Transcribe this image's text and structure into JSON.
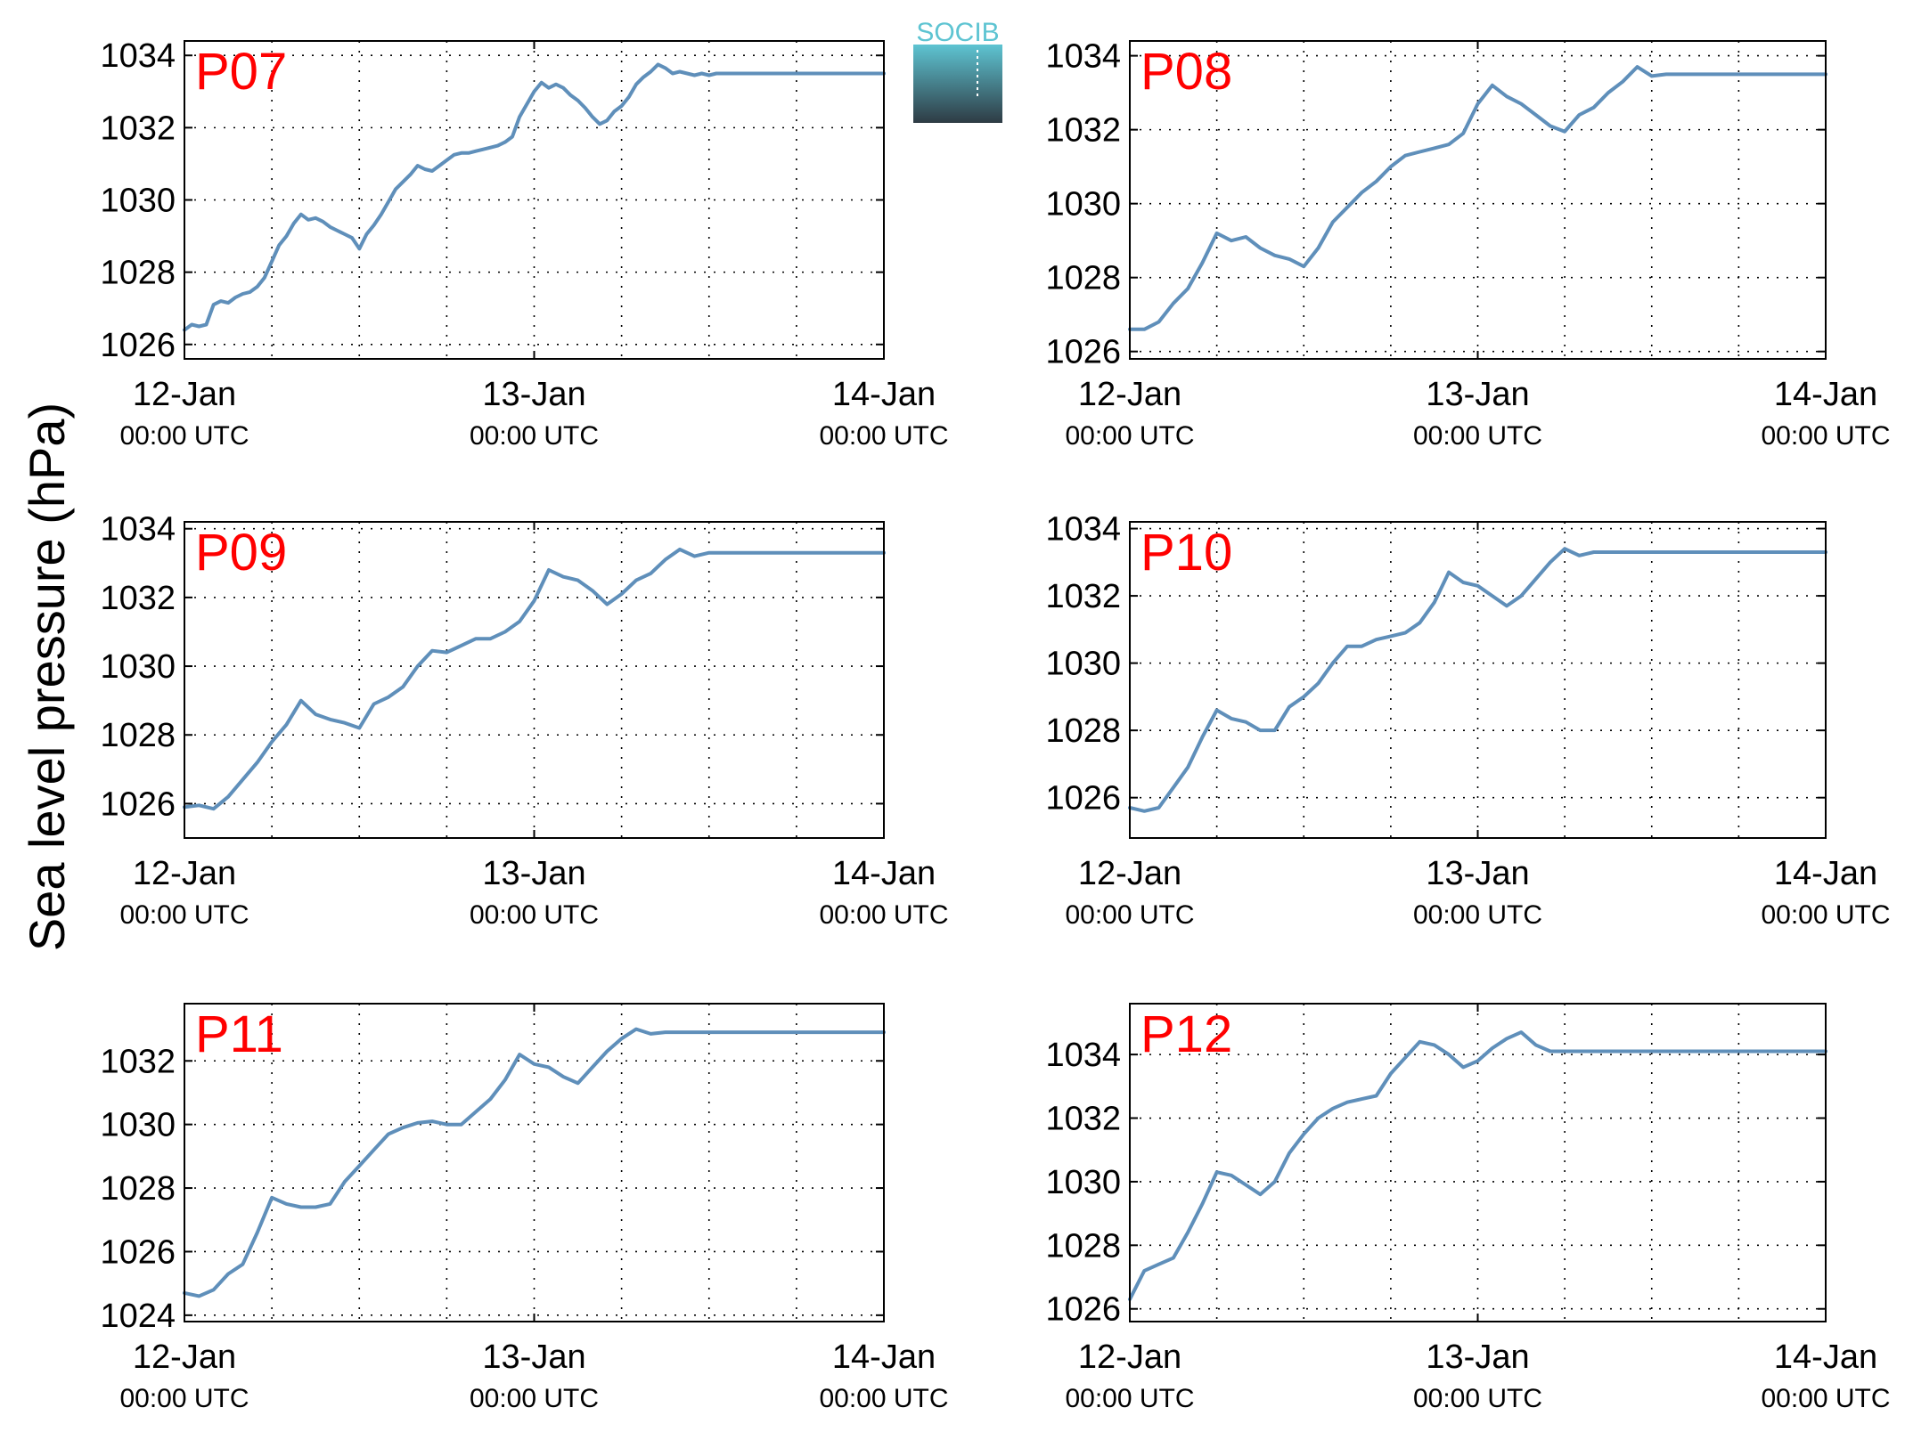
{
  "figure": {
    "ylabel": "Sea level pressure (hPa)",
    "logo_text": "SOCIB",
    "colors": {
      "line": "#5f8fba",
      "label": "#ff0000",
      "grid": "#000000",
      "logo_top": "#5ec4d2",
      "logo_bottom": "#2e3b44"
    }
  },
  "chart_data": [
    {
      "type": "line",
      "title": "P07",
      "x_ticks": [
        {
          "top": "12-Jan",
          "bottom": "00:00 UTC"
        },
        {
          "top": "13-Jan",
          "bottom": "00:00 UTC"
        },
        {
          "top": "14-Jan",
          "bottom": "00:00 UTC"
        }
      ],
      "xlim_hours": [
        0,
        48
      ],
      "ylim": [
        1025.6,
        1034.4
      ],
      "y_ticks": [
        1026,
        1028,
        1030,
        1032,
        1034
      ],
      "grid": true,
      "series": [
        {
          "hours": [
            0,
            0.5,
            1,
            1.5,
            2,
            2.5,
            3,
            3.5,
            4,
            4.5,
            5,
            5.5,
            6,
            6.5,
            7,
            7.5,
            8,
            8.5,
            9,
            9.5,
            10,
            10.5,
            11,
            11.5,
            12,
            12.5,
            13,
            13.5,
            14,
            14.5,
            15,
            15.5,
            16,
            16.5,
            17,
            17.5,
            18,
            18.5,
            19,
            19.5,
            20,
            20.5,
            21,
            21.5,
            22,
            22.5,
            23,
            23.5,
            24,
            24.5,
            25,
            25.5,
            26,
            26.5,
            27,
            27.5,
            28,
            28.5,
            29,
            29.5,
            30,
            30.5,
            31,
            31.5,
            32,
            32.5,
            33,
            33.5,
            34,
            34.5,
            35,
            35.5,
            36,
            36.5,
            37,
            37.5,
            38,
            38.5,
            39,
            39.5,
            40,
            40.5,
            41,
            41.5,
            42,
            42.5,
            43,
            43.5,
            44,
            44.5,
            45,
            45.5,
            46,
            46.5,
            47,
            47.5,
            48
          ],
          "values": [
            1026.4,
            1026.55,
            1026.5,
            1026.55,
            1027.1,
            1027.2,
            1027.15,
            1027.3,
            1027.4,
            1027.45,
            1027.6,
            1027.85,
            1028.3,
            1028.75,
            1029.0,
            1029.35,
            1029.6,
            1029.45,
            1029.5,
            1029.4,
            1029.25,
            1029.15,
            1029.05,
            1028.95,
            1028.65,
            1029.05,
            1029.3,
            1029.6,
            1029.95,
            1030.3,
            1030.5,
            1030.7,
            1030.95,
            1030.85,
            1030.8,
            1030.95,
            1031.1,
            1031.25,
            1031.3,
            1031.3,
            1031.35,
            1031.4,
            1031.45,
            1031.5,
            1031.6,
            1031.75,
            1032.3,
            1032.65,
            1033.0,
            1033.25,
            1033.1,
            1033.2,
            1033.1,
            1032.9,
            1032.75,
            1032.55,
            1032.3,
            1032.1,
            1032.2,
            1032.45,
            1032.6,
            1032.85,
            1033.2,
            1033.4,
            1033.55,
            1033.75,
            1033.65,
            1033.5,
            1033.55,
            1033.5,
            1033.45,
            1033.5,
            1033.45,
            1033.5,
            1033.5,
            1033.5,
            1033.5,
            1033.5,
            1033.5,
            1033.5,
            1033.5,
            1033.5,
            1033.5,
            1033.5,
            1033.5,
            1033.5,
            1033.5,
            1033.5,
            1033.5,
            1033.5,
            1033.5,
            1033.5,
            1033.5,
            1033.5,
            1033.5,
            1033.5,
            1033.5
          ]
        }
      ]
    },
    {
      "type": "line",
      "title": "P08",
      "x_ticks": [
        {
          "top": "12-Jan",
          "bottom": "00:00 UTC"
        },
        {
          "top": "13-Jan",
          "bottom": "00:00 UTC"
        },
        {
          "top": "14-Jan",
          "bottom": "00:00 UTC"
        }
      ],
      "xlim_hours": [
        0,
        48
      ],
      "ylim": [
        1025.8,
        1034.4
      ],
      "y_ticks": [
        1026,
        1028,
        1030,
        1032,
        1034
      ],
      "grid": true,
      "series": [
        {
          "hours": [
            0,
            1,
            2,
            3,
            4,
            5,
            6,
            7,
            8,
            9,
            10,
            11,
            12,
            13,
            14,
            15,
            16,
            17,
            18,
            19,
            20,
            21,
            22,
            23,
            24,
            25,
            26,
            27,
            28,
            29,
            30,
            31,
            32,
            33,
            34,
            35,
            36,
            37,
            38,
            39,
            40,
            41,
            42,
            43,
            44,
            45,
            46,
            47,
            48
          ],
          "values": [
            1026.6,
            1026.6,
            1026.8,
            1027.3,
            1027.7,
            1028.4,
            1029.2,
            1029.0,
            1029.1,
            1028.8,
            1028.6,
            1028.5,
            1028.3,
            1028.8,
            1029.5,
            1029.9,
            1030.3,
            1030.6,
            1031.0,
            1031.3,
            1031.4,
            1031.5,
            1031.6,
            1031.9,
            1032.7,
            1033.2,
            1032.9,
            1032.7,
            1032.4,
            1032.1,
            1031.95,
            1032.4,
            1032.6,
            1033.0,
            1033.3,
            1033.7,
            1033.45,
            1033.5,
            1033.5,
            1033.5,
            1033.5,
            1033.5,
            1033.5,
            1033.5,
            1033.5,
            1033.5,
            1033.5,
            1033.5,
            1033.5
          ]
        }
      ]
    },
    {
      "type": "line",
      "title": "P09",
      "x_ticks": [
        {
          "top": "12-Jan",
          "bottom": "00:00 UTC"
        },
        {
          "top": "13-Jan",
          "bottom": "00:00 UTC"
        },
        {
          "top": "14-Jan",
          "bottom": "00:00 UTC"
        }
      ],
      "xlim_hours": [
        0,
        48
      ],
      "ylim": [
        1025.0,
        1034.2
      ],
      "y_ticks": [
        1026,
        1028,
        1030,
        1032,
        1034
      ],
      "grid": true,
      "series": [
        {
          "hours": [
            0,
            1,
            2,
            3,
            4,
            5,
            6,
            7,
            8,
            9,
            10,
            11,
            12,
            13,
            14,
            15,
            16,
            17,
            18,
            19,
            20,
            21,
            22,
            23,
            24,
            25,
            26,
            27,
            28,
            29,
            30,
            31,
            32,
            33,
            34,
            35,
            36,
            37,
            38,
            39,
            40,
            41,
            42,
            43,
            44,
            45,
            46,
            47,
            48
          ],
          "values": [
            1025.9,
            1025.95,
            1025.85,
            1026.2,
            1026.7,
            1027.2,
            1027.8,
            1028.3,
            1029.0,
            1028.6,
            1028.45,
            1028.35,
            1028.2,
            1028.9,
            1029.1,
            1029.4,
            1030.0,
            1030.45,
            1030.4,
            1030.6,
            1030.8,
            1030.8,
            1031.0,
            1031.3,
            1031.9,
            1032.8,
            1032.6,
            1032.5,
            1032.2,
            1031.8,
            1032.1,
            1032.5,
            1032.7,
            1033.1,
            1033.4,
            1033.2,
            1033.3,
            1033.3,
            1033.3,
            1033.3,
            1033.3,
            1033.3,
            1033.3,
            1033.3,
            1033.3,
            1033.3,
            1033.3,
            1033.3,
            1033.3
          ]
        }
      ]
    },
    {
      "type": "line",
      "title": "P10",
      "x_ticks": [
        {
          "top": "12-Jan",
          "bottom": "00:00 UTC"
        },
        {
          "top": "13-Jan",
          "bottom": "00:00 UTC"
        },
        {
          "top": "14-Jan",
          "bottom": "00:00 UTC"
        }
      ],
      "xlim_hours": [
        0,
        48
      ],
      "ylim": [
        1024.8,
        1034.2
      ],
      "y_ticks": [
        1026,
        1028,
        1030,
        1032,
        1034
      ],
      "grid": true,
      "series": [
        {
          "hours": [
            0,
            1,
            2,
            3,
            4,
            5,
            6,
            7,
            8,
            9,
            10,
            11,
            12,
            13,
            14,
            15,
            16,
            17,
            18,
            19,
            20,
            21,
            22,
            23,
            24,
            25,
            26,
            27,
            28,
            29,
            30,
            31,
            32,
            33,
            34,
            35,
            36,
            37,
            38,
            39,
            40,
            41,
            42,
            43,
            44,
            45,
            46,
            47,
            48
          ],
          "values": [
            1025.7,
            1025.6,
            1025.7,
            1026.3,
            1026.9,
            1027.8,
            1028.6,
            1028.35,
            1028.25,
            1028.0,
            1028.0,
            1028.7,
            1029.0,
            1029.4,
            1030.0,
            1030.5,
            1030.5,
            1030.7,
            1030.8,
            1030.9,
            1031.2,
            1031.8,
            1032.7,
            1032.4,
            1032.3,
            1032.0,
            1031.7,
            1032.0,
            1032.5,
            1033.0,
            1033.4,
            1033.2,
            1033.3,
            1033.3,
            1033.3,
            1033.3,
            1033.3,
            1033.3,
            1033.3,
            1033.3,
            1033.3,
            1033.3,
            1033.3,
            1033.3,
            1033.3,
            1033.3,
            1033.3,
            1033.3,
            1033.3
          ]
        }
      ]
    },
    {
      "type": "line",
      "title": "P11",
      "x_ticks": [
        {
          "top": "12-Jan",
          "bottom": "00:00 UTC"
        },
        {
          "top": "13-Jan",
          "bottom": "00:00 UTC"
        },
        {
          "top": "14-Jan",
          "bottom": "00:00 UTC"
        }
      ],
      "xlim_hours": [
        0,
        48
      ],
      "ylim": [
        1023.8,
        1033.8
      ],
      "y_ticks": [
        1024,
        1026,
        1028,
        1030,
        1032
      ],
      "grid": true,
      "series": [
        {
          "hours": [
            0,
            1,
            2,
            3,
            4,
            5,
            6,
            7,
            8,
            9,
            10,
            11,
            12,
            13,
            14,
            15,
            16,
            17,
            18,
            19,
            20,
            21,
            22,
            23,
            24,
            25,
            26,
            27,
            28,
            29,
            30,
            31,
            32,
            33,
            34,
            35,
            36,
            37,
            38,
            39,
            40,
            41,
            42,
            43,
            44,
            45,
            46,
            47,
            48
          ],
          "values": [
            1024.7,
            1024.6,
            1024.8,
            1025.3,
            1025.6,
            1026.6,
            1027.7,
            1027.5,
            1027.4,
            1027.4,
            1027.5,
            1028.2,
            1028.7,
            1029.2,
            1029.7,
            1029.9,
            1030.05,
            1030.1,
            1030.0,
            1030.0,
            1030.4,
            1030.8,
            1031.4,
            1032.2,
            1031.9,
            1031.8,
            1031.5,
            1031.3,
            1031.8,
            1032.3,
            1032.7,
            1033.0,
            1032.85,
            1032.9,
            1032.9,
            1032.9,
            1032.9,
            1032.9,
            1032.9,
            1032.9,
            1032.9,
            1032.9,
            1032.9,
            1032.9,
            1032.9,
            1032.9,
            1032.9,
            1032.9,
            1032.9
          ]
        }
      ]
    },
    {
      "type": "line",
      "title": "P12",
      "x_ticks": [
        {
          "top": "12-Jan",
          "bottom": "00:00 UTC"
        },
        {
          "top": "13-Jan",
          "bottom": "00:00 UTC"
        },
        {
          "top": "14-Jan",
          "bottom": "00:00 UTC"
        }
      ],
      "xlim_hours": [
        0,
        48
      ],
      "ylim": [
        1025.6,
        1035.6
      ],
      "y_ticks": [
        1026,
        1028,
        1030,
        1032,
        1034
      ],
      "grid": true,
      "series": [
        {
          "hours": [
            0,
            1,
            2,
            3,
            4,
            5,
            6,
            7,
            8,
            9,
            10,
            11,
            12,
            13,
            14,
            15,
            16,
            17,
            18,
            19,
            20,
            21,
            22,
            23,
            24,
            25,
            26,
            27,
            28,
            29,
            30,
            31,
            32,
            33,
            34,
            35,
            36,
            37,
            38,
            39,
            40,
            41,
            42,
            43,
            44,
            45,
            46,
            47,
            48
          ],
          "values": [
            1026.3,
            1027.2,
            1027.4,
            1027.6,
            1028.4,
            1029.3,
            1030.3,
            1030.2,
            1029.9,
            1029.6,
            1030.0,
            1030.9,
            1031.5,
            1032.0,
            1032.3,
            1032.5,
            1032.6,
            1032.7,
            1033.4,
            1033.9,
            1034.4,
            1034.3,
            1034.0,
            1033.6,
            1033.8,
            1034.2,
            1034.5,
            1034.7,
            1034.3,
            1034.1,
            1034.1,
            1034.1,
            1034.1,
            1034.1,
            1034.1,
            1034.1,
            1034.1,
            1034.1,
            1034.1,
            1034.1,
            1034.1,
            1034.1,
            1034.1,
            1034.1,
            1034.1,
            1034.1,
            1034.1,
            1034.1,
            1034.1
          ]
        }
      ]
    }
  ]
}
